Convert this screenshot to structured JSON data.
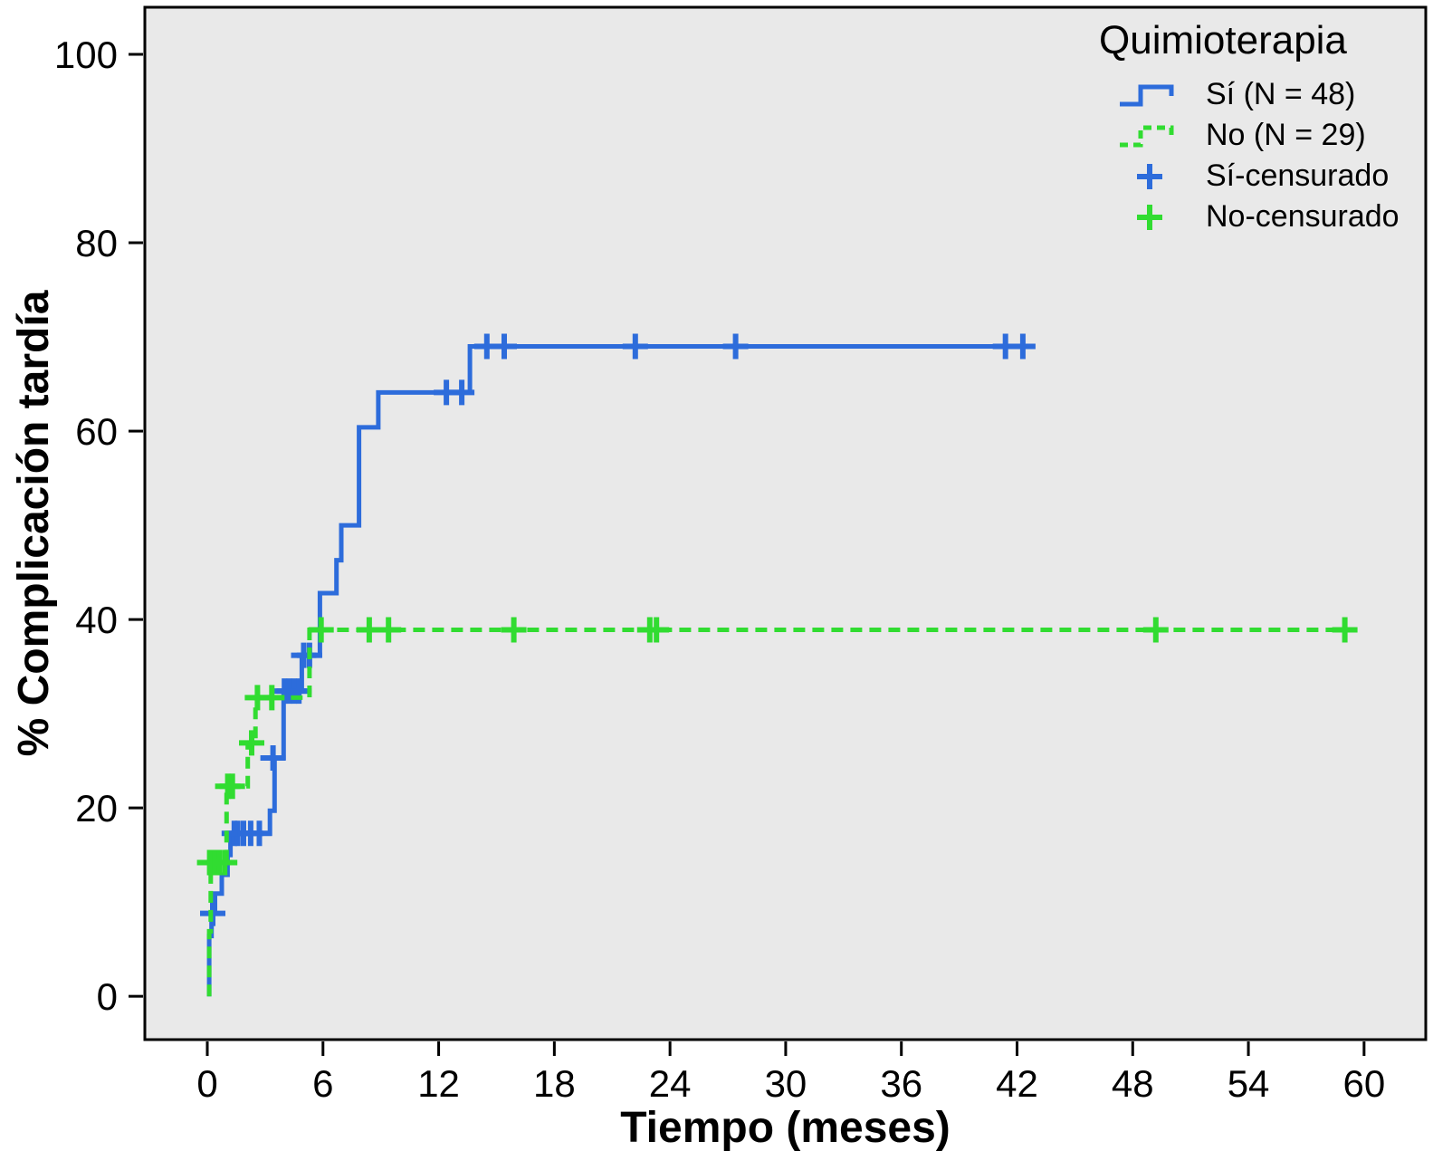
{
  "figure": {
    "page_background": "#ffffff",
    "plot_background": "#e9e9e9",
    "axis_color": "#000000",
    "si_color": "#2d6cdb",
    "no_color": "#31dc31"
  },
  "chart_data": {
    "type": "line",
    "subtype": "kaplan-meier-step",
    "title": "",
    "xlabel": "Tiempo (meses)",
    "ylabel": "% Complicación tardía",
    "xticks": [
      0,
      6,
      12,
      18,
      24,
      30,
      36,
      42,
      48,
      54,
      60
    ],
    "yticks": [
      0,
      20,
      40,
      60,
      80,
      100
    ],
    "xlim": [
      -3.24,
      63.2
    ],
    "ylim": [
      -4.6,
      105.0
    ],
    "grid": false,
    "legend": {
      "title": "Quimioterapia",
      "position": "top-right",
      "entries": [
        {
          "key": "si",
          "label": "Sí (N = 48)",
          "glyph": "solid-step-line",
          "color": "#2d6cdb"
        },
        {
          "key": "no",
          "label": "No (N = 29)",
          "glyph": "dashed-step-line",
          "color": "#31dc31"
        },
        {
          "key": "si-cens",
          "label": "Sí-censurado",
          "glyph": "plus-marker",
          "color": "#2d6cdb"
        },
        {
          "key": "no-cens",
          "label": "No-censurado",
          "glyph": "plus-marker",
          "color": "#31dc31"
        }
      ]
    },
    "series": [
      {
        "key": "si",
        "name": "Sí (N = 48)",
        "color": "#2d6cdb",
        "line_style": "solid",
        "start": [
          0.1,
          0
        ],
        "end_t": 42.9,
        "steps": [
          [
            0.1,
            6.4
          ],
          [
            0.22,
            8.8
          ],
          [
            0.4,
            10.9
          ],
          [
            0.75,
            12.9
          ],
          [
            1.05,
            15.0
          ],
          [
            1.2,
            17.3
          ],
          [
            3.25,
            19.7
          ],
          [
            3.49,
            25.3
          ],
          [
            3.96,
            32.4
          ],
          [
            4.9,
            36.2
          ],
          [
            5.84,
            42.8
          ],
          [
            6.7,
            46.3
          ],
          [
            6.95,
            50.0
          ],
          [
            7.87,
            60.4
          ],
          [
            8.87,
            64.1
          ],
          [
            13.62,
            69.0
          ]
        ],
        "censored": [
          [
            0.28,
            8.8
          ],
          [
            1.4,
            17.3
          ],
          [
            1.58,
            17.3
          ],
          [
            1.88,
            17.3
          ],
          [
            2.25,
            17.3
          ],
          [
            2.7,
            17.3
          ],
          [
            3.41,
            25.3
          ],
          [
            4.0,
            32.4
          ],
          [
            4.25,
            32.4
          ],
          [
            4.5,
            32.4
          ],
          [
            4.75,
            32.4
          ],
          [
            5.0,
            36.2
          ],
          [
            5.3,
            36.2
          ],
          [
            12.4,
            64.1
          ],
          [
            13.2,
            64.1
          ],
          [
            14.5,
            69.0
          ],
          [
            15.4,
            69.0
          ],
          [
            22.2,
            69.0
          ],
          [
            27.4,
            69.0
          ],
          [
            41.4,
            69.0
          ],
          [
            42.3,
            69.0
          ]
        ]
      },
      {
        "key": "no",
        "name": "No (N = 29)",
        "color": "#31dc31",
        "line_style": "dashed",
        "start": [
          0.1,
          0
        ],
        "end_t": 59.4,
        "steps": [
          [
            0.1,
            6.9
          ],
          [
            0.18,
            14.2
          ],
          [
            1.0,
            22.3
          ],
          [
            2.1,
            26.9
          ],
          [
            2.5,
            31.7
          ],
          [
            5.3,
            38.9
          ]
        ],
        "censored": [
          [
            0.12,
            14.2
          ],
          [
            0.38,
            14.2
          ],
          [
            0.62,
            14.2
          ],
          [
            0.9,
            14.2
          ],
          [
            1.06,
            22.3
          ],
          [
            1.3,
            22.3
          ],
          [
            2.3,
            26.9
          ],
          [
            2.6,
            31.7
          ],
          [
            3.35,
            31.7
          ],
          [
            5.9,
            38.9
          ],
          [
            8.4,
            38.9
          ],
          [
            9.4,
            38.9
          ],
          [
            15.9,
            38.9
          ],
          [
            22.95,
            38.9
          ],
          [
            23.3,
            38.9
          ],
          [
            49.2,
            38.9
          ],
          [
            59.0,
            38.9
          ]
        ]
      }
    ]
  }
}
